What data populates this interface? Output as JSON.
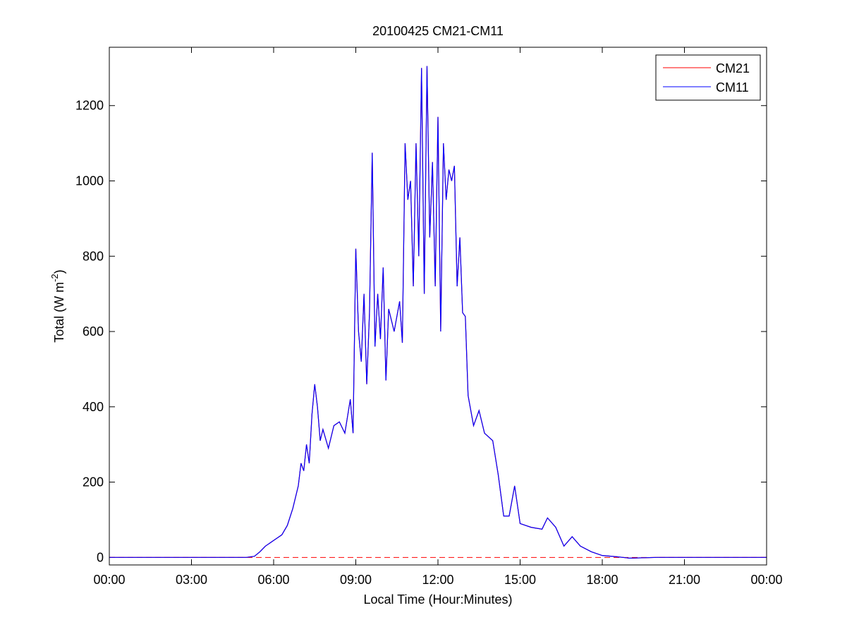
{
  "chart_data": {
    "type": "line",
    "title": "20100425 CM21-CM11",
    "xlabel": "Local Time (Hour:Minutes)",
    "ylabel": {
      "text": "Total (W m",
      "sup": "-2",
      "end": ")"
    },
    "x": [
      0,
      1,
      2,
      3,
      4,
      5,
      5.3,
      5.5,
      5.7,
      6,
      6.3,
      6.5,
      6.7,
      6.9,
      7.0,
      7.1,
      7.2,
      7.3,
      7.4,
      7.5,
      7.6,
      7.7,
      7.8,
      8.0,
      8.2,
      8.4,
      8.6,
      8.8,
      8.9,
      9.0,
      9.1,
      9.2,
      9.3,
      9.4,
      9.5,
      9.6,
      9.7,
      9.8,
      9.9,
      10.0,
      10.1,
      10.2,
      10.4,
      10.6,
      10.7,
      10.8,
      10.9,
      11.0,
      11.1,
      11.2,
      11.3,
      11.4,
      11.5,
      11.6,
      11.7,
      11.8,
      11.9,
      12.0,
      12.1,
      12.2,
      12.3,
      12.4,
      12.5,
      12.6,
      12.7,
      12.8,
      12.9,
      13.0,
      13.1,
      13.3,
      13.5,
      13.7,
      14.0,
      14.2,
      14.4,
      14.6,
      14.8,
      15.0,
      15.4,
      15.8,
      16.0,
      16.3,
      16.6,
      16.9,
      17.2,
      17.6,
      18.0,
      18.5,
      19,
      20,
      22,
      24
    ],
    "series": [
      {
        "name": "CM21",
        "color": "#ff0000",
        "values": [
          0,
          0,
          0,
          0,
          0,
          0,
          3,
          15,
          30,
          45,
          60,
          85,
          130,
          190,
          250,
          230,
          300,
          250,
          380,
          460,
          400,
          310,
          340,
          290,
          350,
          360,
          330,
          420,
          330,
          820,
          600,
          520,
          700,
          460,
          650,
          1075,
          560,
          700,
          580,
          770,
          470,
          660,
          600,
          680,
          570,
          1100,
          950,
          1000,
          720,
          1100,
          800,
          1300,
          700,
          1305,
          850,
          1050,
          720,
          1170,
          600,
          1100,
          950,
          1030,
          1000,
          1040,
          720,
          850,
          650,
          640,
          430,
          350,
          390,
          330,
          310,
          220,
          110,
          110,
          190,
          90,
          80,
          75,
          105,
          80,
          30,
          55,
          30,
          15,
          5,
          2,
          -2,
          0,
          0,
          0
        ]
      },
      {
        "name": "CM11",
        "color": "#0000ff",
        "values": [
          0,
          0,
          0,
          0,
          0,
          0,
          3,
          15,
          30,
          45,
          60,
          85,
          130,
          190,
          250,
          230,
          300,
          250,
          380,
          460,
          400,
          310,
          340,
          290,
          350,
          360,
          330,
          420,
          330,
          820,
          600,
          520,
          700,
          460,
          650,
          1075,
          560,
          700,
          580,
          770,
          470,
          660,
          600,
          680,
          570,
          1100,
          950,
          1000,
          720,
          1100,
          800,
          1300,
          700,
          1305,
          850,
          1050,
          720,
          1170,
          600,
          1100,
          950,
          1030,
          1000,
          1040,
          720,
          850,
          650,
          640,
          430,
          350,
          390,
          330,
          310,
          220,
          110,
          110,
          190,
          90,
          80,
          75,
          105,
          80,
          30,
          55,
          30,
          15,
          5,
          2,
          -2,
          0,
          0,
          0
        ]
      }
    ],
    "hline": {
      "value": 0,
      "color": "#ff0000"
    },
    "xlim": [
      0,
      24
    ],
    "ylim": [
      -20,
      1355
    ],
    "xticks": [
      {
        "value": 0,
        "label": "00:00"
      },
      {
        "value": 3,
        "label": "03:00"
      },
      {
        "value": 6,
        "label": "06:00"
      },
      {
        "value": 9,
        "label": "09:00"
      },
      {
        "value": 12,
        "label": "12:00"
      },
      {
        "value": 15,
        "label": "15:00"
      },
      {
        "value": 18,
        "label": "18:00"
      },
      {
        "value": 21,
        "label": "21:00"
      },
      {
        "value": 24,
        "label": "00:00"
      }
    ],
    "yticks": [
      0,
      200,
      400,
      600,
      800,
      1000,
      1200
    ],
    "legend": "top-right"
  }
}
